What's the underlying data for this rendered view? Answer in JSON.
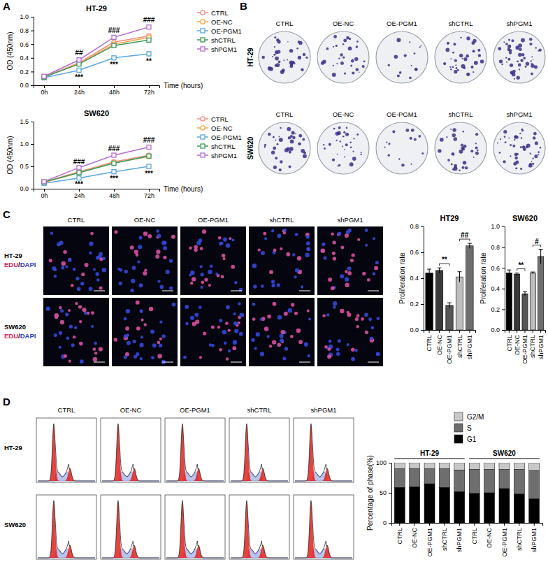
{
  "panel_labels": [
    "A",
    "B",
    "C",
    "D"
  ],
  "chart_data": [
    {
      "type": "line",
      "title": "HT-29",
      "categories": [
        "0h",
        "24h",
        "48h",
        "72h"
      ],
      "x_label": "Time (hours)",
      "y_label": "OD (450nm)",
      "ylim": [
        0,
        1.0
      ],
      "yticks": [
        {
          "value": 0,
          "label": "0.0"
        },
        0.2,
        0.4,
        0.6,
        0.8,
        {
          "value": 1.0,
          "label": "1.0"
        }
      ],
      "legend": "right",
      "series": [
        {
          "name": "CTRL",
          "color": "#f08c84",
          "marker": "circle",
          "values": [
            0.12,
            0.33,
            0.63,
            0.72
          ],
          "errors": [
            0.02,
            0.03,
            0.02,
            0.03
          ]
        },
        {
          "name": "OE-NC",
          "color": "#f5a742",
          "marker": "circle",
          "values": [
            0.12,
            0.32,
            0.6,
            0.7
          ],
          "errors": [
            0.02,
            0.02,
            0.02,
            0.03
          ]
        },
        {
          "name": "OE-PGM1",
          "color": "#5aa8e0",
          "marker": "square",
          "values": [
            0.11,
            0.22,
            0.4,
            0.46
          ],
          "errors": [
            0.02,
            0.03,
            0.02,
            0.03
          ]
        },
        {
          "name": "shCTRL",
          "color": "#3a9a5a",
          "marker": "square",
          "values": [
            0.12,
            0.31,
            0.58,
            0.66
          ],
          "errors": [
            0.02,
            0.02,
            0.02,
            0.02
          ]
        },
        {
          "name": "shPGM1",
          "color": "#b36fd0",
          "marker": "square",
          "values": [
            0.13,
            0.37,
            0.7,
            0.85
          ],
          "errors": [
            0.02,
            0.03,
            0.02,
            0.03
          ]
        }
      ],
      "annotations": [
        {
          "text": "##",
          "category": "24h",
          "position": "above"
        },
        {
          "text": "###",
          "category": "48h",
          "position": "above"
        },
        {
          "text": "###",
          "category": "72h",
          "position": "above"
        },
        {
          "text": "***",
          "category": "24h",
          "position": "below"
        },
        {
          "text": "***",
          "category": "48h",
          "position": "below"
        },
        {
          "text": "**",
          "category": "72h",
          "position": "below"
        }
      ]
    },
    {
      "type": "line",
      "title": "SW620",
      "categories": [
        "0h",
        "24h",
        "48h",
        "72h"
      ],
      "x_label": "Time (hours)",
      "y_label": "OD (450nm)",
      "ylim": [
        0,
        1.5
      ],
      "yticks": [
        {
          "value": 0,
          "label": "0.0"
        },
        0.5,
        {
          "value": 1.0,
          "label": "1.0"
        },
        1.5
      ],
      "legend": "right",
      "series": [
        {
          "name": "CTRL",
          "color": "#f08c84",
          "marker": "circle",
          "values": [
            0.15,
            0.38,
            0.6,
            0.75
          ],
          "errors": [
            0.03,
            0.02,
            0.02,
            0.03
          ]
        },
        {
          "name": "OE-NC",
          "color": "#f5a742",
          "marker": "circle",
          "values": [
            0.14,
            0.36,
            0.58,
            0.72
          ],
          "errors": [
            0.03,
            0.02,
            0.02,
            0.03
          ]
        },
        {
          "name": "OE-PGM1",
          "color": "#5aa8e0",
          "marker": "square",
          "values": [
            0.12,
            0.24,
            0.38,
            0.5
          ],
          "errors": [
            0.02,
            0.02,
            0.03,
            0.04
          ]
        },
        {
          "name": "shCTRL",
          "color": "#3a9a5a",
          "marker": "square",
          "values": [
            0.15,
            0.36,
            0.57,
            0.73
          ],
          "errors": [
            0.03,
            0.02,
            0.02,
            0.03
          ]
        },
        {
          "name": "shPGM1",
          "color": "#b36fd0",
          "marker": "square",
          "values": [
            0.16,
            0.47,
            0.75,
            0.93
          ],
          "errors": [
            0.03,
            0.02,
            0.02,
            0.02
          ]
        }
      ],
      "annotations": [
        {
          "text": "###",
          "category": "24h",
          "position": "above"
        },
        {
          "text": "###",
          "category": "48h",
          "position": "above"
        },
        {
          "text": "###",
          "category": "72h",
          "position": "above"
        },
        {
          "text": "***",
          "category": "24h",
          "position": "below"
        },
        {
          "text": "***",
          "category": "48h",
          "position": "below"
        },
        {
          "text": "***",
          "category": "72h",
          "position": "below"
        }
      ]
    },
    {
      "type": "bar",
      "title": "HT29",
      "y_label": "Proliferation rate",
      "categories": [
        "CTRL",
        "OE-NC",
        "OE-PGM1",
        "shCTRL",
        "shPGM1"
      ],
      "values": [
        0.44,
        0.46,
        0.19,
        0.41,
        0.65
      ],
      "errors": [
        0.03,
        0.02,
        0.02,
        0.04,
        0.02
      ],
      "colors": [
        "#000000",
        "#3a3a3a",
        "#555555",
        "#bdbdbd",
        "#6e6e6e"
      ],
      "ylim": [
        0,
        0.8
      ],
      "yticks": [
        {
          "value": 0,
          "label": "0.0"
        },
        0.2,
        0.4,
        0.6,
        0.8
      ],
      "comparisons": [
        {
          "text": "**",
          "from": "OE-NC",
          "to": "OE-PGM1"
        },
        {
          "text": "##",
          "from": "shCTRL",
          "to": "shPGM1"
        }
      ]
    },
    {
      "type": "bar",
      "title": "SW620",
      "y_label": "Proliferation rate",
      "categories": [
        "CTRL",
        "OE-NC",
        "OE-PGM1",
        "shCTRL",
        "shPGM1"
      ],
      "values": [
        0.55,
        0.54,
        0.35,
        0.55,
        0.71
      ],
      "errors": [
        0.03,
        0.01,
        0.02,
        0.01,
        0.07
      ],
      "colors": [
        "#000000",
        "#3a3a3a",
        "#555555",
        "#bdbdbd",
        "#6e6e6e"
      ],
      "ylim": [
        0,
        1.0
      ],
      "yticks": [
        {
          "value": 0,
          "label": "0.0"
        },
        0.2,
        0.4,
        0.6,
        0.8,
        {
          "value": 1.0,
          "label": "1.0"
        }
      ],
      "comparisons": [
        {
          "text": "**",
          "from": "OE-NC",
          "to": "OE-PGM1"
        },
        {
          "text": "#",
          "from": "shCTRL",
          "to": "shPGM1"
        }
      ]
    },
    {
      "type": "bar",
      "stacked": true,
      "y_label": "Percentage of phase(%)",
      "groups": [
        "HT-29",
        "SW620"
      ],
      "categories": [
        "CTRL",
        "OE-NC",
        "OE-PGM1",
        "shCTRL",
        "shPGM1",
        "CTRL",
        "OE-NC",
        "OE-PGM1",
        "shCTRL",
        "shPGM1"
      ],
      "ylim": [
        0,
        100
      ],
      "yticks": [
        0,
        50,
        100
      ],
      "legend": "top-right",
      "series": [
        {
          "name": "G1",
          "color": "#000000",
          "values": [
            59,
            60,
            65,
            59,
            52,
            49,
            50,
            57,
            48,
            40
          ]
        },
        {
          "name": "S",
          "color": "#6e6e6e",
          "values": [
            31,
            30,
            25,
            31,
            36,
            40,
            39,
            32,
            41,
            47
          ]
        },
        {
          "name": "G2/M",
          "color": "#c8c8c8",
          "values": [
            10,
            10,
            10,
            10,
            12,
            11,
            11,
            11,
            11,
            13
          ]
        }
      ]
    }
  ],
  "images": {
    "colony": {
      "rows": [
        "HT-29",
        "SW620"
      ],
      "columns": [
        "CTRL",
        "OE-NC",
        "OE-PGM1",
        "shCTRL",
        "shPGM1"
      ]
    },
    "edu": {
      "rows": [
        "HT-29",
        "SW620"
      ],
      "stain_label": [
        "EDU",
        "/",
        "DAPI"
      ],
      "columns": [
        "CTRL",
        "OE-NC",
        "OE-PGM1",
        "shCTRL",
        "shPGM1"
      ]
    },
    "cell_cycle": {
      "rows": [
        "HT-29",
        "SW620"
      ],
      "columns": [
        "CTRL",
        "OE-NC",
        "OE-PGM1",
        "shCTRL",
        "shPGM1"
      ]
    }
  }
}
